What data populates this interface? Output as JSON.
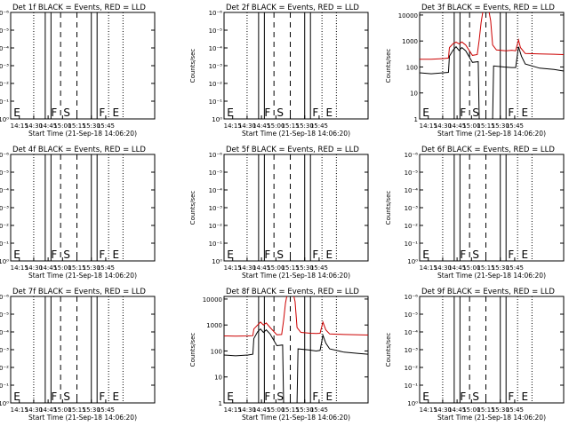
{
  "chart_data": [
    {
      "type": "line",
      "title": "Det 1f BLACK = Events, RED = LLD",
      "ylabel": "Counts/sec",
      "xlabel": "Start Time (21-Sep-18 14:06:20)",
      "x_ticks": [
        "14:15",
        "14:30",
        "14:45",
        "15:00",
        "15:15",
        "15:30",
        "15:45"
      ],
      "y_ticks": [
        "10⁰",
        "10⁻¹",
        "10⁻²",
        "10⁻³",
        "10⁻⁴",
        "10⁻⁵",
        "10⁻⁶"
      ],
      "annotations": [
        "E",
        "F",
        "S",
        "F",
        "E"
      ],
      "series": []
    },
    {
      "type": "line",
      "title": "Det 2f BLACK = Events, RED = LLD",
      "ylabel": "Counts/sec",
      "xlabel": "Start Time (21-Sep-18 14:06:20)",
      "x_ticks": [
        "14:15",
        "14:30",
        "14:45",
        "15:00",
        "15:15",
        "15:30",
        "15:45"
      ],
      "y_ticks": [
        "10⁰",
        "10⁻¹",
        "10⁻²",
        "10⁻³",
        "10⁻⁴",
        "10⁻⁵",
        "10⁻⁶"
      ],
      "annotations": [
        "E",
        "F",
        "S",
        "F",
        "E"
      ],
      "series": []
    },
    {
      "type": "line",
      "title": "Det 3f BLACK = Events, RED = LLD",
      "ylabel": "Counts/sec",
      "xlabel": "Start Time (21-Sep-18 14:06:20)",
      "x_ticks": [
        "14:15",
        "14:30",
        "14:45",
        "15:00",
        "15:15",
        "15:30",
        "15:45"
      ],
      "y_ticks": [
        "1",
        "10",
        "100",
        "1000",
        "10000"
      ],
      "annotations": [
        "E",
        "F",
        "S",
        "F",
        "E"
      ],
      "series": [
        {
          "color": "#cc0000",
          "points": [
            [
              0,
              200
            ],
            [
              12,
              200
            ],
            [
              25,
              210
            ],
            [
              30,
              220
            ],
            [
              31,
              560
            ],
            [
              35,
              800
            ],
            [
              38,
              900
            ],
            [
              41,
              780
            ],
            [
              44,
              920
            ],
            [
              48,
              700
            ],
            [
              55,
              280
            ],
            [
              60,
              300
            ],
            [
              62,
              1100
            ],
            [
              64,
              5000
            ],
            [
              66,
              15000
            ],
            [
              72,
              15000
            ],
            [
              74,
              6000
            ],
            [
              76,
              700
            ],
            [
              80,
              450
            ],
            [
              90,
              420
            ],
            [
              96,
              440
            ],
            [
              100,
              420
            ],
            [
              103,
              1100
            ],
            [
              105,
              560
            ],
            [
              110,
              330
            ],
            [
              125,
              320
            ],
            [
              140,
              310
            ],
            [
              150,
              300
            ]
          ]
        },
        {
          "color": "#000000",
          "points": [
            [
              0,
              60
            ],
            [
              12,
              55
            ],
            [
              25,
              60
            ],
            [
              30,
              62
            ],
            [
              31,
              260
            ],
            [
              35,
              450
            ],
            [
              38,
              600
            ],
            [
              41,
              430
            ],
            [
              44,
              560
            ],
            [
              48,
              420
            ],
            [
              55,
              150
            ],
            [
              61,
              160
            ],
            [
              62,
              0.8
            ],
            [
              76,
              0.8
            ],
            [
              77,
              110
            ],
            [
              88,
              100
            ],
            [
              96,
              95
            ],
            [
              100,
              95
            ],
            [
              103,
              600
            ],
            [
              106,
              260
            ],
            [
              110,
              130
            ],
            [
              125,
              90
            ],
            [
              140,
              80
            ],
            [
              150,
              70
            ]
          ]
        }
      ]
    },
    {
      "type": "line",
      "title": "Det 4f BLACK = Events, RED = LLD",
      "ylabel": "Counts/sec",
      "xlabel": "Start Time (21-Sep-18 14:06:20)",
      "x_ticks": [
        "14:15",
        "14:30",
        "14:45",
        "15:00",
        "15:15",
        "15:30",
        "15:45"
      ],
      "y_ticks": [
        "10⁰",
        "10⁻¹",
        "10⁻²",
        "10⁻³",
        "10⁻⁴",
        "10⁻⁵",
        "10⁻⁶"
      ],
      "annotations": [
        "E",
        "F",
        "S",
        "F",
        "E"
      ],
      "series": []
    },
    {
      "type": "line",
      "title": "Det 5f BLACK = Events, RED = LLD",
      "ylabel": "Counts/sec",
      "xlabel": "Start Time (21-Sep-18 14:06:20)",
      "x_ticks": [
        "14:15",
        "14:30",
        "14:45",
        "15:00",
        "15:15",
        "15:30",
        "15:45"
      ],
      "y_ticks": [
        "10⁰",
        "10⁻¹",
        "10⁻²",
        "10⁻³",
        "10⁻⁴",
        "10⁻⁵",
        "10⁻⁶"
      ],
      "annotations": [
        "E",
        "F",
        "S",
        "F",
        "E"
      ],
      "series": []
    },
    {
      "type": "line",
      "title": "Det 6f BLACK = Events, RED = LLD",
      "ylabel": "Counts/sec",
      "xlabel": "Start Time (21-Sep-18 14:06:20)",
      "x_ticks": [
        "14:15",
        "14:30",
        "14:45",
        "15:00",
        "15:15",
        "15:30",
        "15:45"
      ],
      "y_ticks": [
        "10⁰",
        "10⁻¹",
        "10⁻²",
        "10⁻³",
        "10⁻⁴",
        "10⁻⁵",
        "10⁻⁶"
      ],
      "annotations": [
        "E",
        "F",
        "S",
        "F",
        "E"
      ],
      "series": []
    },
    {
      "type": "line",
      "title": "Det 7f BLACK = Events, RED = LLD",
      "ylabel": "Counts/sec",
      "xlabel": "Start Time (21-Sep-18 14:06:20)",
      "x_ticks": [
        "14:15",
        "14:30",
        "14:45",
        "15:00",
        "15:15",
        "15:30",
        "15:45"
      ],
      "y_ticks": [
        "10⁰",
        "10⁻¹",
        "10⁻²",
        "10⁻³",
        "10⁻⁴",
        "10⁻⁵",
        "10⁻⁶"
      ],
      "annotations": [
        "E",
        "F",
        "S",
        "F",
        "E"
      ],
      "series": []
    },
    {
      "type": "line",
      "title": "Det 8f BLACK = Events, RED = LLD",
      "ylabel": "Counts/sec",
      "xlabel": "Start Time (21-Sep-18 14:06:20)",
      "x_ticks": [
        "14:15",
        "14:30",
        "14:45",
        "15:00",
        "15:15",
        "15:30",
        "15:45"
      ],
      "y_ticks": [
        "1",
        "10",
        "100",
        "1000",
        "10000"
      ],
      "annotations": [
        "E",
        "F",
        "S",
        "F",
        "E"
      ],
      "series": [
        {
          "color": "#cc0000",
          "points": [
            [
              0,
              380
            ],
            [
              12,
              370
            ],
            [
              25,
              380
            ],
            [
              30,
              390
            ],
            [
              31,
              700
            ],
            [
              35,
              1000
            ],
            [
              38,
              1300
            ],
            [
              41,
              1000
            ],
            [
              44,
              1200
            ],
            [
              48,
              800
            ],
            [
              55,
              420
            ],
            [
              60,
              430
            ],
            [
              62,
              1500
            ],
            [
              64,
              7000
            ],
            [
              66,
              17000
            ],
            [
              72,
              17000
            ],
            [
              74,
              8000
            ],
            [
              76,
              800
            ],
            [
              80,
              520
            ],
            [
              90,
              480
            ],
            [
              96,
              470
            ],
            [
              100,
              480
            ],
            [
              103,
              1300
            ],
            [
              106,
              650
            ],
            [
              110,
              450
            ],
            [
              125,
              430
            ],
            [
              140,
              420
            ],
            [
              150,
              410
            ]
          ]
        },
        {
          "color": "#000000",
          "points": [
            [
              0,
              70
            ],
            [
              12,
              65
            ],
            [
              25,
              70
            ],
            [
              30,
              75
            ],
            [
              31,
              300
            ],
            [
              35,
              550
            ],
            [
              38,
              700
            ],
            [
              41,
              520
            ],
            [
              44,
              650
            ],
            [
              48,
              450
            ],
            [
              55,
              160
            ],
            [
              61,
              170
            ],
            [
              62,
              0.8
            ],
            [
              76,
              0.8
            ],
            [
              77,
              120
            ],
            [
              88,
              110
            ],
            [
              96,
              100
            ],
            [
              100,
              105
            ],
            [
              103,
              400
            ],
            [
              106,
              200
            ],
            [
              110,
              120
            ],
            [
              125,
              90
            ],
            [
              140,
              80
            ],
            [
              150,
              75
            ]
          ]
        }
      ]
    },
    {
      "type": "line",
      "title": "Det 9f BLACK = Events, RED = LLD",
      "ylabel": "Counts/sec",
      "xlabel": "Start Time (21-Sep-18 14:06:20)",
      "x_ticks": [
        "14:15",
        "14:30",
        "14:45",
        "15:00",
        "15:15",
        "15:30",
        "15:45"
      ],
      "y_ticks": [
        "10⁰",
        "10⁻¹",
        "10⁻²",
        "10⁻³",
        "10⁻⁴",
        "10⁻⁵",
        "10⁻⁶"
      ],
      "annotations": [
        "E",
        "F",
        "S",
        "F",
        "E"
      ],
      "series": []
    }
  ]
}
